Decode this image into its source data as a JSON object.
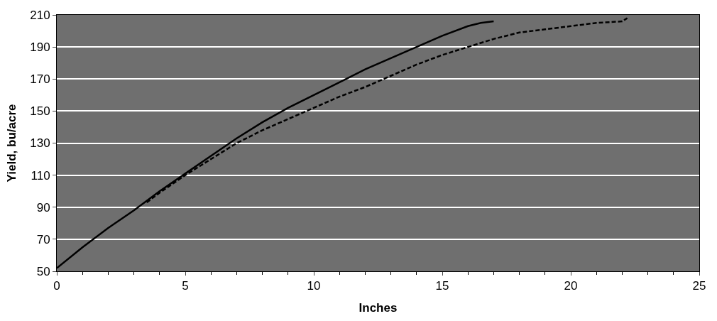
{
  "chart_data": {
    "type": "line",
    "xlabel": "Inches",
    "ylabel": "Yield, bu/acre",
    "xlim": [
      0,
      25
    ],
    "xticks": [
      0,
      5,
      10,
      15,
      20,
      25
    ],
    "ylim": [
      50,
      210
    ],
    "yticks": [
      50,
      70,
      90,
      110,
      130,
      150,
      170,
      190,
      210
    ],
    "grid": "y",
    "marker": "none",
    "series": [
      {
        "color": "#000000",
        "line_style": "solid",
        "x": [
          0,
          1,
          2,
          3,
          4,
          5,
          6,
          7,
          8,
          9,
          10,
          11,
          12,
          13,
          14,
          15,
          16,
          16.5,
          17
        ],
        "values": [
          52,
          65,
          77,
          88,
          100,
          111,
          122,
          133,
          143,
          152,
          160,
          168,
          176,
          183,
          190,
          197,
          203,
          205,
          206
        ]
      },
      {
        "color": "#000000",
        "line_style": "dashed",
        "x": [
          3.5,
          4,
          5,
          6,
          7,
          8,
          9,
          10,
          11,
          12,
          13,
          14,
          15,
          16,
          17,
          18,
          19,
          20,
          21,
          22,
          22.2
        ],
        "values": [
          93,
          99,
          110,
          120,
          130,
          138,
          145,
          152,
          159,
          165,
          172,
          179,
          185,
          190,
          195,
          199,
          201,
          203,
          205,
          206,
          208
        ]
      }
    ]
  }
}
